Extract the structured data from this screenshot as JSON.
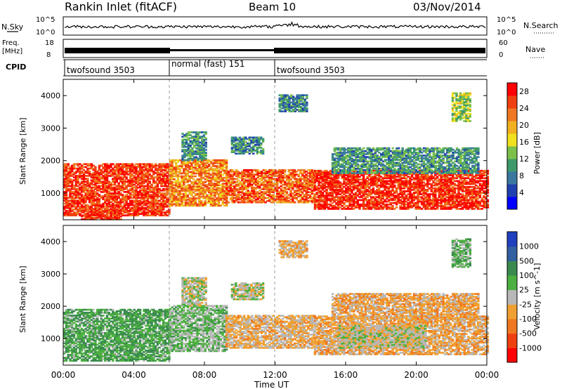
{
  "chart_data": {
    "type": "heatmap",
    "header": {
      "station": "Rankin Inlet (fitACF)",
      "beam": "Beam 10",
      "date": "03/Nov/2014"
    },
    "top_strip": {
      "left_label": "N.Sky",
      "right_label": "N.Search",
      "left_ticks": [
        "10^5",
        "10^0"
      ],
      "right_ticks": [
        "10^5",
        "10^0"
      ]
    },
    "freq_strip": {
      "left_label": "Freq.",
      "left_unit": "[MHz]",
      "left_ticks": [
        "18",
        "8"
      ],
      "right_label": "Nave",
      "right_ticks": [
        "60",
        "0"
      ]
    },
    "cpid": {
      "label": "CPID",
      "segments": [
        {
          "start": "00:00",
          "end": "06:00",
          "name": "twofsound 3503"
        },
        {
          "start": "06:00",
          "end": "12:00",
          "name": "normal (fast) 151"
        },
        {
          "start": "12:00",
          "end": "24:00",
          "name": "twofsound 3503"
        }
      ]
    },
    "x_axis": {
      "label": "Time UT",
      "ticks": [
        "00:00",
        "04:00",
        "08:00",
        "12:00",
        "16:00",
        "20:00",
        "00:00"
      ],
      "range_hours": [
        0,
        24
      ]
    },
    "power_panel": {
      "ylabel": "Slant Range [km]",
      "yticks": [
        "1000",
        "2000",
        "3000",
        "4000"
      ],
      "ylim": [
        180,
        4500
      ],
      "colorbar": {
        "label": "Power [dB]",
        "ticks": [
          "4",
          "8",
          "12",
          "16",
          "20",
          "24",
          "28"
        ],
        "range": [
          0,
          30
        ],
        "colors": [
          "#0000ff",
          "#2040b0",
          "#3a78a0",
          "#3e9a6a",
          "#7cc04a",
          "#f0e020",
          "#f0b020",
          "#f07820",
          "#f04010",
          "#ff0000"
        ]
      },
      "regions": [
        {
          "t0": 0.0,
          "t1": 6.0,
          "r0": 300,
          "r1": 1900,
          "level": 26
        },
        {
          "t0": 6.0,
          "t1": 9.2,
          "r0": 600,
          "r1": 2000,
          "level": 22
        },
        {
          "t0": 9.2,
          "t1": 14.2,
          "r0": 700,
          "r1": 1700,
          "level": 24
        },
        {
          "t0": 14.2,
          "t1": 24.0,
          "r0": 500,
          "r1": 1700,
          "level": 27
        },
        {
          "t0": 6.7,
          "t1": 8.1,
          "r0": 2000,
          "r1": 2900,
          "level": 10
        },
        {
          "t0": 9.5,
          "t1": 11.3,
          "r0": 2200,
          "r1": 2700,
          "level": 9
        },
        {
          "t0": 15.2,
          "t1": 23.5,
          "r0": 1600,
          "r1": 2400,
          "level": 10
        },
        {
          "t0": 12.2,
          "t1": 13.8,
          "r0": 3500,
          "r1": 4000,
          "level": 9
        },
        {
          "t0": 22.0,
          "t1": 23.0,
          "r0": 3200,
          "r1": 4100,
          "level": 14
        },
        {
          "t0": 1.0,
          "t1": 3.2,
          "r0": 180,
          "r1": 500,
          "level": 26
        }
      ]
    },
    "velocity_panel": {
      "ylabel": "Slant Range [km]",
      "yticks": [
        "1000",
        "2000",
        "3000",
        "4000"
      ],
      "ylim": [
        180,
        4500
      ],
      "colorbar": {
        "label": "Velocity [m s^-1]",
        "ticks": [
          "1000",
          "500",
          "100",
          "25",
          "-25",
          "-100",
          "-500",
          "-1000"
        ],
        "range": [
          -1000,
          1000
        ],
        "colors": [
          "#2040c0",
          "#3060a0",
          "#3a8a50",
          "#4cb040",
          "#b8b8b8",
          "#f0a030",
          "#f07820",
          "#f04010",
          "#ff0000"
        ]
      },
      "regions": [
        {
          "t0": 0.0,
          "t1": 6.0,
          "r0": 300,
          "r1": 1900,
          "level": 300
        },
        {
          "t0": 6.0,
          "t1": 9.2,
          "r0": 600,
          "r1": 2000,
          "level": 150
        },
        {
          "t0": 9.2,
          "t1": 14.2,
          "r0": 700,
          "r1": 1700,
          "level": -150
        },
        {
          "t0": 14.2,
          "t1": 24.0,
          "r0": 500,
          "r1": 1700,
          "level": -200
        },
        {
          "t0": 15.5,
          "t1": 20.5,
          "r0": 700,
          "r1": 1400,
          "level": 0
        },
        {
          "t0": 6.7,
          "t1": 8.1,
          "r0": 2000,
          "r1": 2900,
          "level": 0
        },
        {
          "t0": 9.5,
          "t1": 11.3,
          "r0": 2200,
          "r1": 2700,
          "level": 0
        },
        {
          "t0": 15.2,
          "t1": 23.5,
          "r0": 1600,
          "r1": 2400,
          "level": -200
        },
        {
          "t0": 12.2,
          "t1": 13.8,
          "r0": 3500,
          "r1": 4000,
          "level": -150
        },
        {
          "t0": 22.0,
          "t1": 23.0,
          "r0": 3200,
          "r1": 4100,
          "level": 200
        }
      ]
    }
  }
}
